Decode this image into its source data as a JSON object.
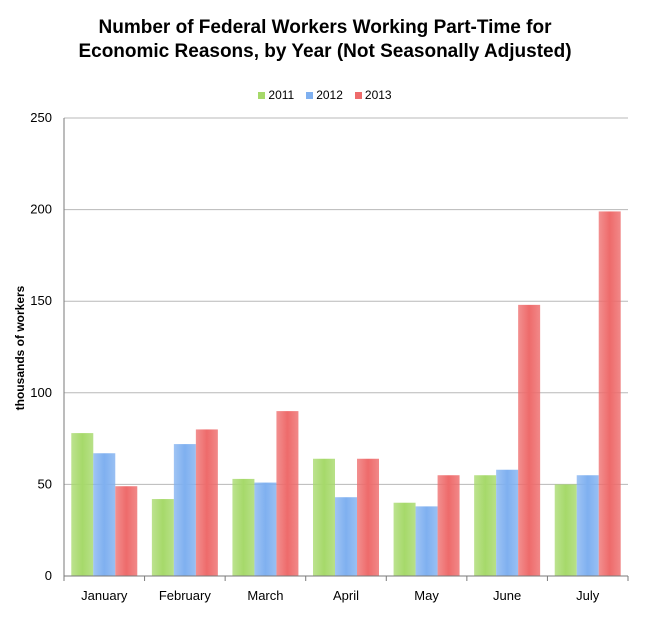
{
  "chart_data": {
    "type": "bar",
    "title_line1": "Number of Federal Workers Working Part-Time for",
    "title_line2": "Economic Reasons, by Year (Not Seasonally Adjusted)",
    "xlabel": "",
    "ylabel": "thousands of workers",
    "ylim": [
      0,
      250
    ],
    "yticks": [
      0,
      50,
      100,
      150,
      200,
      250
    ],
    "grid": true,
    "legend_position": "top-center",
    "categories": [
      "January",
      "February",
      "March",
      "April",
      "May",
      "June",
      "July"
    ],
    "series": [
      {
        "name": "2011",
        "color": "#a6d96a",
        "values": [
          78,
          42,
          53,
          64,
          40,
          55,
          50
        ]
      },
      {
        "name": "2012",
        "color": "#7fb0f0",
        "values": [
          67,
          72,
          51,
          43,
          38,
          58,
          55
        ]
      },
      {
        "name": "2013",
        "color": "#ee6b6b",
        "values": [
          49,
          80,
          90,
          64,
          55,
          148,
          199
        ]
      }
    ]
  }
}
